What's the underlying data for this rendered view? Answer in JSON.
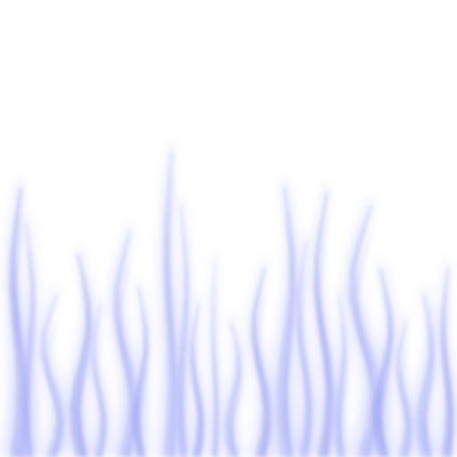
{
  "image": {
    "kind": "abstract-texture",
    "background_color": "#ffffff",
    "flame_color_light": "#cfd3ff",
    "flame_color_mid": "#a9b0f6",
    "flame_color_deep": "#8f97ee"
  }
}
